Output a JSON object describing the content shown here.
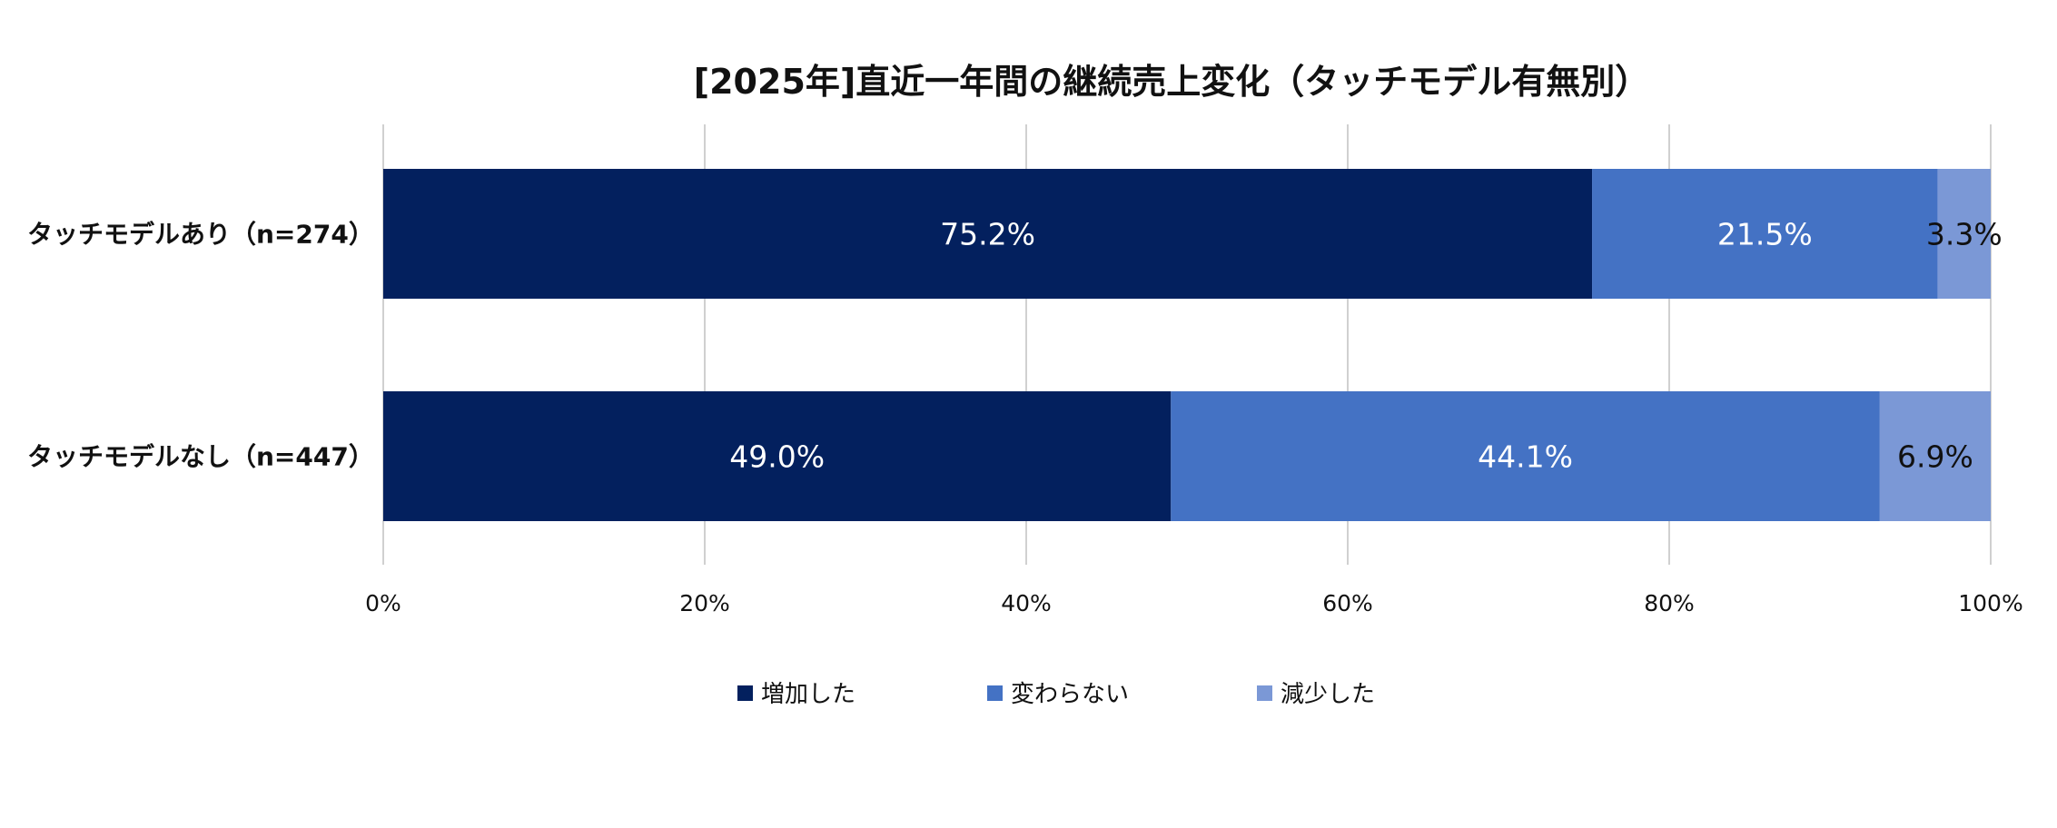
{
  "chart_data": {
    "type": "bar",
    "orientation": "horizontal",
    "stacked": "percent",
    "title": "[2025年]直近一年間の継続売上変化（タッチモデル有無別）",
    "categories": [
      "タッチモデルあり（n=274）",
      "タッチモデルなし（n=447）"
    ],
    "series": [
      {
        "name": "増加した",
        "color": "#03205e",
        "label_color": "#ffffff",
        "values": [
          75.2,
          49.0
        ],
        "labels": [
          "75.2%",
          "49.0%"
        ]
      },
      {
        "name": "変わらない",
        "color": "#4472c4",
        "label_color": "#ffffff",
        "values": [
          21.5,
          44.1
        ],
        "labels": [
          "21.5%",
          "44.1%"
        ]
      },
      {
        "name": "減少した",
        "color": "#7b98d6",
        "label_color": "#111111",
        "values": [
          3.3,
          6.9
        ],
        "labels": [
          "3.3%",
          "6.9%"
        ]
      }
    ],
    "xlim": [
      0,
      100
    ],
    "x_ticks": [
      0,
      20,
      40,
      60,
      80,
      100
    ],
    "x_tick_labels": [
      "0%",
      "20%",
      "40%",
      "60%",
      "80%",
      "100%"
    ],
    "grid": true,
    "legend_position": "bottom",
    "xlabel": "",
    "ylabel": ""
  }
}
